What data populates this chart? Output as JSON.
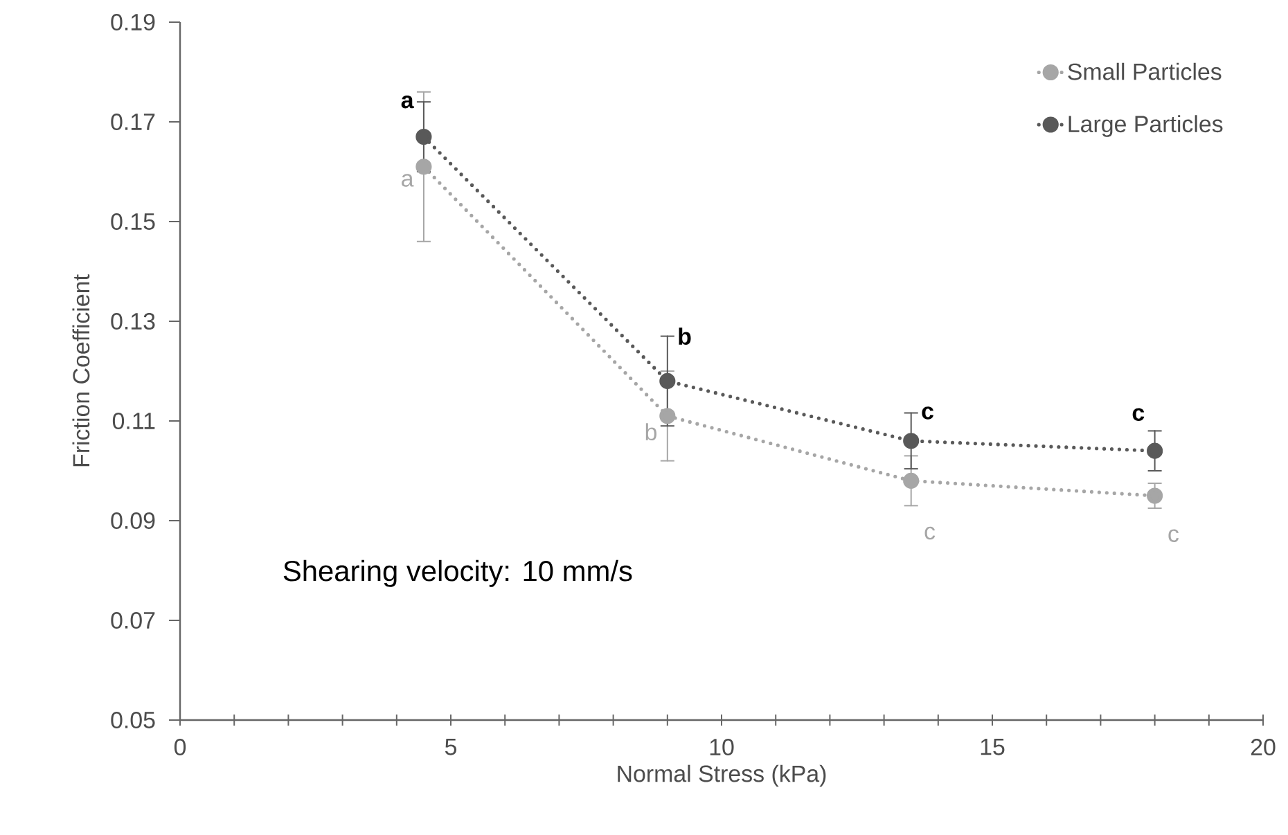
{
  "chart_data": {
    "type": "line",
    "xlabel": "Normal Stress (kPa)",
    "ylabel": "Friction Coefficient",
    "annotations": [
      "Shearing velocity: 10 mm/s"
    ],
    "x": [
      4.5,
      9,
      13.5,
      18
    ],
    "series": [
      {
        "name": "Small Particles",
        "color": "#a6a6a6",
        "values": [
          0.161,
          0.111,
          0.098,
          0.095
        ],
        "errors": [
          0.015,
          0.009,
          0.005,
          0.0025
        ],
        "value_labels": [
          "a",
          "b",
          "c",
          "c"
        ]
      },
      {
        "name": "Large Particles",
        "color": "#595959",
        "values": [
          0.167,
          0.118,
          0.106,
          0.104
        ],
        "errors": [
          0.007,
          0.009,
          0.0056,
          0.004
        ],
        "value_labels": [
          "a",
          "b",
          "c",
          "c"
        ]
      }
    ],
    "xlim": [
      0,
      20
    ],
    "ylim": [
      0.05,
      0.19
    ],
    "xticks": [
      0,
      {
        "value": 1,
        "label": null
      },
      {
        "value": 2,
        "label": null
      },
      {
        "value": 3,
        "label": null
      },
      {
        "value": 4,
        "label": null
      },
      5,
      {
        "value": 6,
        "label": null
      },
      {
        "value": 7,
        "label": null
      },
      {
        "value": 8,
        "label": null
      },
      {
        "value": 9,
        "label": null
      },
      10,
      {
        "value": 11,
        "label": null
      },
      {
        "value": 12,
        "label": null
      },
      {
        "value": 13,
        "label": null
      },
      {
        "value": 14,
        "label": null
      },
      15,
      {
        "value": 16,
        "label": null
      },
      {
        "value": 17,
        "label": null
      },
      {
        "value": 18,
        "label": null
      },
      {
        "value": 19,
        "label": null
      },
      20
    ],
    "yticks": [
      0.05,
      0.07,
      0.09,
      0.11,
      0.13,
      0.15,
      0.17,
      0.19
    ],
    "grid": false,
    "legend": "top right",
    "marker": "circle",
    "line_style": "dotted"
  }
}
